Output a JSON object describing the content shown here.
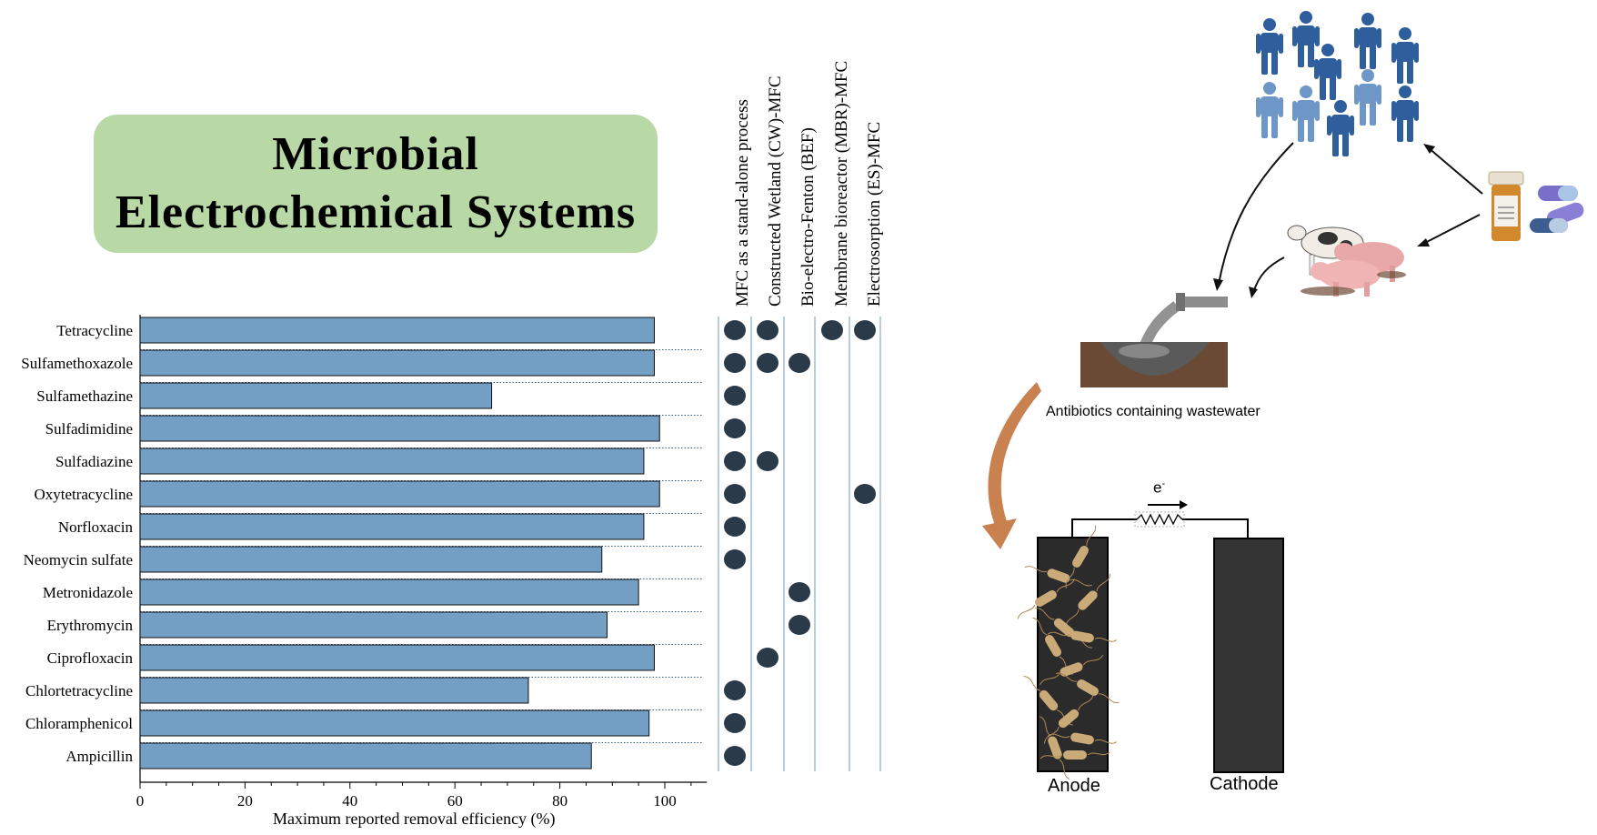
{
  "title": {
    "line1": "Microbial",
    "line2": "Electrochemical Systems"
  },
  "chart_data": {
    "type": "bar",
    "orientation": "horizontal",
    "categories": [
      "Tetracycline",
      "Sulfamethoxazole",
      "Sulfamethazine",
      "Sulfadimidine",
      "Sulfadiazine",
      "Oxytetracycline",
      "Norfloxacin",
      "Neomycin sulfate",
      "Metronidazole",
      "Erythromycin",
      "Ciprofloxacin",
      "Chlortetracycline",
      "Chloramphenicol",
      "Ampicillin"
    ],
    "values": [
      98,
      98,
      67,
      99,
      96,
      99,
      96,
      88,
      95,
      89,
      98,
      74,
      97,
      86
    ],
    "xlabel": "Maximum reported removal efficiency (%)",
    "xlim": [
      0,
      108
    ],
    "xticks": [
      0,
      20,
      40,
      60,
      80,
      100
    ],
    "bar_color": "#749fc4",
    "grid": "dotted horizontal separators"
  },
  "processes": {
    "labels": [
      "MFC as a stand-alone process",
      "Constructed Wetland (CW)-MFC",
      "Bio-electro-Fenton (BEF)",
      "Membrane bioreactor (MBR)-MFC",
      "Electrosorption (ES)-MFC"
    ],
    "matrix": [
      [
        1,
        1,
        0,
        1,
        1
      ],
      [
        1,
        1,
        1,
        0,
        0
      ],
      [
        1,
        0,
        0,
        0,
        0
      ],
      [
        1,
        0,
        0,
        0,
        0
      ],
      [
        1,
        1,
        0,
        0,
        0
      ],
      [
        1,
        0,
        0,
        0,
        1
      ],
      [
        1,
        0,
        0,
        0,
        0
      ],
      [
        1,
        0,
        0,
        0,
        0
      ],
      [
        0,
        0,
        1,
        0,
        0
      ],
      [
        0,
        0,
        1,
        0,
        0
      ],
      [
        0,
        1,
        0,
        0,
        0
      ],
      [
        1,
        0,
        0,
        0,
        0
      ],
      [
        1,
        0,
        0,
        0,
        0
      ],
      [
        1,
        0,
        0,
        0,
        0
      ]
    ],
    "dot_color": "#2a3a48"
  },
  "illustration": {
    "wastewater_label": "Antibiotics containing wastewater",
    "electron_label": "e",
    "electron_sup": "-",
    "anode_label": "Anode",
    "cathode_label": "Cathode",
    "people_color": "#2e5f9c",
    "people_light_color": "#6e97c8",
    "arrow_color": "#c9814f"
  }
}
